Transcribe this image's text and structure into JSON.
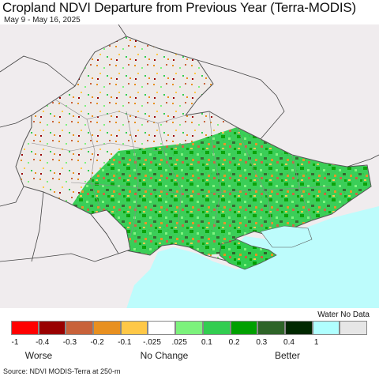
{
  "title": "Cropland NDVI Departure from Previous Year (Terra-MODIS)",
  "date_range": "May 9 - May 16, 2025",
  "map": {
    "region": "Ukraine",
    "land_color": "#f0ecee",
    "sea_color": "#bdfcfc",
    "border_color": "#555555"
  },
  "legend": {
    "water_nodata_label": "Water No Data",
    "swatches": [
      {
        "color": "#ff0000"
      },
      {
        "color": "#990000"
      },
      {
        "color": "#c8623a"
      },
      {
        "color": "#e89020"
      },
      {
        "color": "#ffc847"
      },
      {
        "color": "#ffffff"
      },
      {
        "color": "#7cf27c"
      },
      {
        "color": "#32cd50"
      },
      {
        "color": "#00a000"
      },
      {
        "color": "#2e6428"
      },
      {
        "color": "#002800"
      },
      {
        "color": "#b0ffff"
      },
      {
        "color": "#e6e6e6"
      }
    ],
    "ticks": [
      "-1",
      "-0.4",
      "-0.3",
      "-0.2",
      "-0.1",
      "-.025",
      ".025",
      "0.1",
      "0.2",
      "0.3",
      "0.4",
      "1"
    ],
    "categories": {
      "worse": "Worse",
      "no_change": "No Change",
      "better": "Better"
    }
  },
  "source": "Source: NDVI MODIS-Terra at 250-m"
}
